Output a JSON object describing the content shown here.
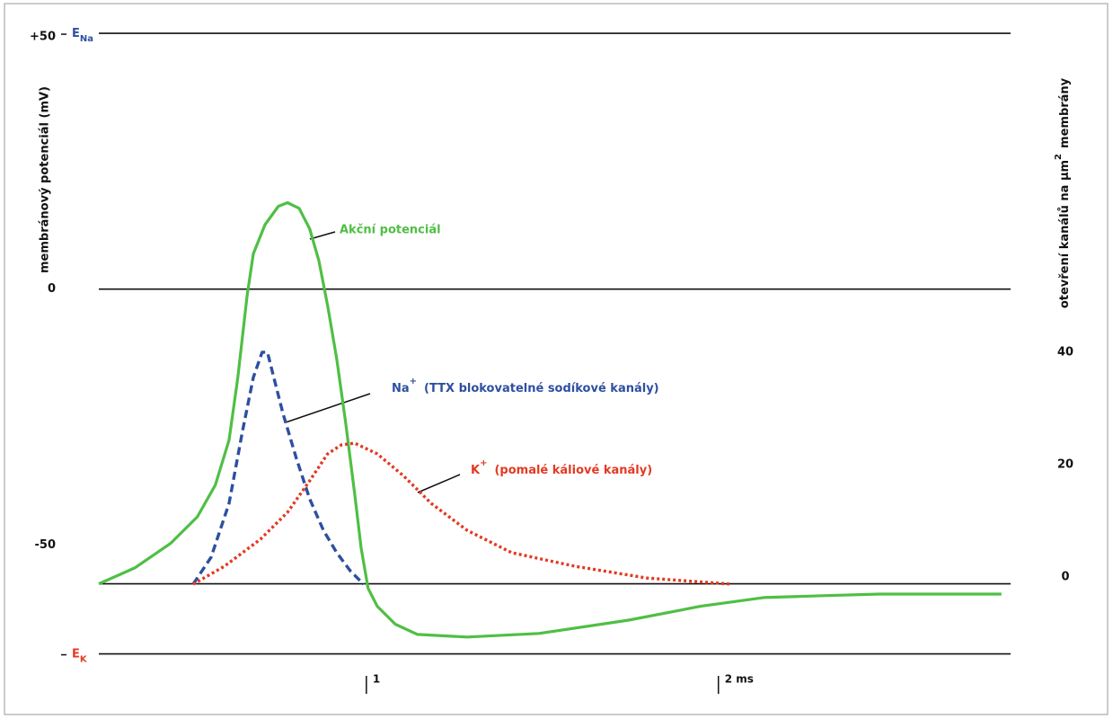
{
  "chart_data": {
    "type": "line",
    "y_label": "membránový potenciál (mV)",
    "y2_label": {
      "text": "otevření kanálů na μm",
      "sup": "2",
      "rest": "membrány"
    },
    "xlim": [
      0.24,
      2.83
    ],
    "xticks": [
      {
        "value": 1,
        "label": "1"
      },
      {
        "value": 2,
        "label": "2 ms"
      }
    ],
    "ylim": [
      -77,
      53
    ],
    "yticks": [
      {
        "value": 50,
        "label": "+50"
      },
      0,
      -50
    ],
    "y2lim": [
      -17.6,
      100.8
    ],
    "y2ticks": [
      0,
      20,
      40
    ],
    "hlines": [
      50,
      0,
      -57.6,
      -71.3
    ],
    "potential_labels": [
      {
        "text": "E",
        "sub": "Na",
        "value": 50,
        "color": "#2e4fa0"
      },
      {
        "text": "E",
        "sub": "K",
        "value": -71.3,
        "color": "#e23a22"
      }
    ],
    "series": [
      {
        "name": "Akční potenciál",
        "color": "#4fbf45",
        "dash": "solid",
        "x": [
          0.24,
          0.342,
          0.444,
          0.52,
          0.571,
          0.61,
          0.635,
          0.661,
          0.679,
          0.712,
          0.75,
          0.776,
          0.809,
          0.839,
          0.865,
          0.89,
          0.916,
          0.941,
          0.967,
          0.985,
          1.005,
          1.031,
          1.082,
          1.145,
          1.286,
          1.49,
          1.745,
          1.949,
          2.128,
          2.306,
          2.459,
          2.804
        ],
        "values": [
          -57.6,
          -54.5,
          -49.7,
          -44.5,
          -38.3,
          -29.5,
          -17.2,
          -1.4,
          6.9,
          12.6,
          16.2,
          16.9,
          15.8,
          11.8,
          5.6,
          -3.2,
          -13.7,
          -26.0,
          -40.1,
          -50.6,
          -58.5,
          -62.0,
          -65.5,
          -67.5,
          -68.0,
          -67.3,
          -64.7,
          -62.0,
          -60.3,
          -59.9,
          -59.6,
          -59.6
        ]
      },
      {
        "name": "Na",
        "charge": "+",
        "label": "(TTX blokovatelné sodíkové kanály)",
        "color": "#2e4fa0",
        "dash": "dashed",
        "axis": "y2",
        "x": [
          0.508,
          0.559,
          0.61,
          0.648,
          0.679,
          0.704,
          0.719,
          0.737,
          0.763,
          0.801,
          0.839,
          0.878,
          0.916,
          0.954,
          0.992
        ],
        "values": [
          0,
          4.8,
          14.4,
          27.2,
          36.8,
          41.3,
          41.3,
          36.8,
          30.4,
          22.4,
          15.2,
          9.6,
          5.6,
          2.4,
          0
        ]
      },
      {
        "name": "K",
        "charge": "+",
        "label": "(pomalé káliové kanály)",
        "color": "#e23a22",
        "dash": "dotted",
        "axis": "y2",
        "x": [
          0.508,
          0.597,
          0.699,
          0.776,
          0.839,
          0.89,
          0.929,
          0.967,
          1.031,
          1.107,
          1.184,
          1.286,
          1.413,
          1.592,
          1.796,
          2.038
        ],
        "values": [
          0,
          3.2,
          8,
          12.8,
          18.4,
          23.2,
          24.8,
          25.1,
          23.2,
          19.2,
          14.4,
          9.6,
          5.6,
          3.2,
          1.1,
          0
        ]
      }
    ]
  }
}
